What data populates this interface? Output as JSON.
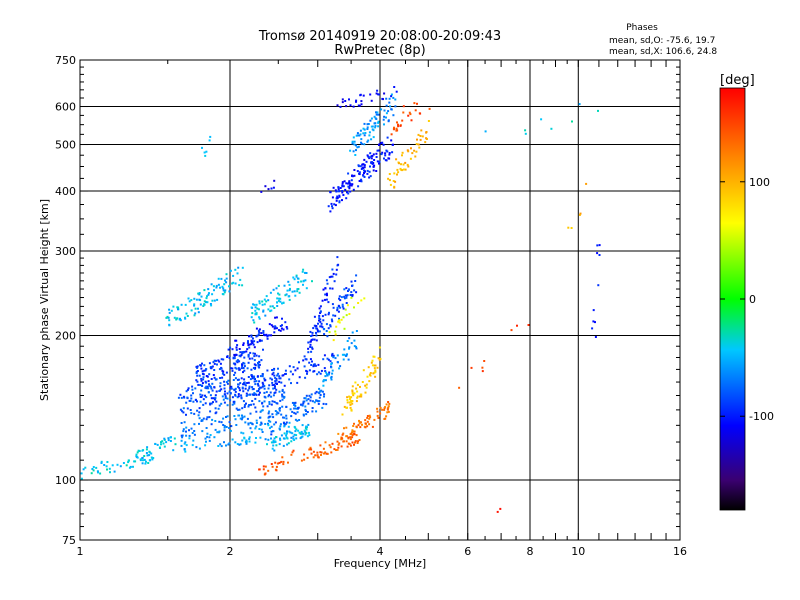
{
  "chart_data": {
    "type": "scatter",
    "title": "Tromsø 20140919 20:08:00-20:09:43",
    "subtitle": "RwPretec (8p)",
    "xlabel": "Frequency [MHz]",
    "ylabel": "Stationary phase Virtual Height [km]",
    "x_scale": "log",
    "y_scale": "log",
    "xlim": [
      1,
      16
    ],
    "ylim": [
      75,
      750
    ],
    "x_ticks": [
      1,
      2,
      4,
      6,
      8,
      10,
      16
    ],
    "x_tick_labels": [
      "1",
      "2",
      "4",
      "6",
      "8",
      "10",
      "16"
    ],
    "x_grid": [
      2,
      4,
      6,
      8,
      10
    ],
    "y_ticks": [
      75,
      100,
      200,
      300,
      400,
      500,
      600,
      750
    ],
    "y_tick_labels": [
      "75",
      "100",
      "200",
      "300",
      "400",
      "500",
      "600",
      "750"
    ],
    "y_grid": [
      100,
      200,
      300,
      400,
      500,
      600
    ],
    "grid": true,
    "legend": {
      "heading": "Phases",
      "line1": "mean, sd,O: -75.6, 19.7",
      "line2": "mean, sd,X: 106.6, 24.8",
      "placement": "top-right"
    },
    "colorbar": {
      "label": "[deg]",
      "range": [
        -180,
        180
      ],
      "tick_values": [
        100,
        0,
        -100
      ],
      "tick_labels": [
        "100",
        "0",
        "-100"
      ],
      "colormap": "rainbow",
      "placement": "right"
    },
    "traces": [
      {
        "name": "",
        "phase": -90,
        "count": 140,
        "x": [
          1.7,
          2.3
        ],
        "y": [
          165,
          180
        ],
        "spread": 0.05
      },
      {
        "name": "",
        "phase": -85,
        "count": 130,
        "x": [
          1.6,
          2.5
        ],
        "y": [
          150,
          162
        ],
        "spread": 0.04
      },
      {
        "name": "",
        "phase": -80,
        "count": 110,
        "x": [
          1.6,
          2.6
        ],
        "y": [
          140,
          150
        ],
        "spread": 0.04
      },
      {
        "name": "",
        "phase": -70,
        "count": 90,
        "x": [
          1.6,
          2.7
        ],
        "y": [
          128,
          138
        ],
        "spread": 0.04
      },
      {
        "name": "",
        "phase": -55,
        "count": 80,
        "x": [
          1.5,
          2.7
        ],
        "y": [
          118,
          127
        ],
        "spread": 0.04
      },
      {
        "name": "",
        "phase": -100,
        "count": 80,
        "x": [
          2.0,
          2.6
        ],
        "y": [
          185,
          215
        ],
        "spread": 0.04
      },
      {
        "name": "",
        "phase": -90,
        "count": 110,
        "x": [
          2.1,
          3.2
        ],
        "y": [
          155,
          175
        ],
        "spread": 0.05
      },
      {
        "name": "",
        "phase": -75,
        "count": 90,
        "x": [
          2.4,
          3.1
        ],
        "y": [
          130,
          150
        ],
        "spread": 0.05
      },
      {
        "name": "",
        "phase": -45,
        "count": 60,
        "x": [
          2.4,
          2.9
        ],
        "y": [
          118,
          128
        ],
        "spread": 0.03
      },
      {
        "name": "",
        "phase": -40,
        "count": 50,
        "x": [
          1.0,
          1.4
        ],
        "y": [
          103,
          112
        ],
        "spread": 0.03
      },
      {
        "name": "",
        "phase": -45,
        "count": 35,
        "x": [
          1.3,
          1.55
        ],
        "y": [
          112,
          122
        ],
        "spread": 0.03
      },
      {
        "name": "",
        "phase": -45,
        "count": 100,
        "x": [
          1.5,
          2.1
        ],
        "y": [
          215,
          265
        ],
        "spread": 0.05
      },
      {
        "name": "",
        "phase": -45,
        "count": 90,
        "x": [
          2.2,
          2.9
        ],
        "y": [
          220,
          265
        ],
        "spread": 0.05
      },
      {
        "name": "",
        "phase": -95,
        "count": 70,
        "x": [
          2.85,
          3.3
        ],
        "y": [
          180,
          290
        ],
        "spread": 0.04
      },
      {
        "name": "",
        "phase": -85,
        "count": 60,
        "x": [
          3.0,
          3.6
        ],
        "y": [
          200,
          260
        ],
        "spread": 0.05
      },
      {
        "name": "",
        "phase": -60,
        "count": 50,
        "x": [
          3.0,
          3.6
        ],
        "y": [
          150,
          200
        ],
        "spread": 0.05
      },
      {
        "name": "",
        "phase": 90,
        "count": 70,
        "x": [
          3.4,
          4.0
        ],
        "y": [
          140,
          180
        ],
        "spread": 0.05
      },
      {
        "name": "",
        "phase": 130,
        "count": 70,
        "x": [
          3.3,
          4.2
        ],
        "y": [
          122,
          140
        ],
        "spread": 0.04
      },
      {
        "name": "",
        "phase": 140,
        "count": 60,
        "x": [
          2.8,
          3.6
        ],
        "y": [
          112,
          122
        ],
        "spread": 0.03
      },
      {
        "name": "",
        "phase": 145,
        "count": 25,
        "x": [
          2.3,
          2.7
        ],
        "y": [
          104,
          112
        ],
        "spread": 0.03
      },
      {
        "name": "",
        "phase": 60,
        "count": 20,
        "x": [
          3.2,
          3.8
        ],
        "y": [
          200,
          260
        ],
        "spread": 0.05
      },
      {
        "name": "",
        "phase": -100,
        "count": 150,
        "x": [
          3.2,
          4.2
        ],
        "y": [
          380,
          500
        ],
        "spread": 0.05
      },
      {
        "name": "",
        "phase": -60,
        "count": 80,
        "x": [
          3.5,
          4.3
        ],
        "y": [
          480,
          620
        ],
        "spread": 0.05
      },
      {
        "name": "",
        "phase": -110,
        "count": 30,
        "x": [
          3.3,
          4.3
        ],
        "y": [
          600,
          650
        ],
        "spread": 0.03
      },
      {
        "name": "",
        "phase": 100,
        "count": 50,
        "x": [
          4.2,
          5.0
        ],
        "y": [
          420,
          540
        ],
        "spread": 0.05
      },
      {
        "name": "",
        "phase": 150,
        "count": 25,
        "x": [
          4.2,
          5.0
        ],
        "y": [
          540,
          620
        ],
        "spread": 0.05
      },
      {
        "name": "",
        "phase": -40,
        "count": 6,
        "x": [
          1.75,
          1.85
        ],
        "y": [
          480,
          510
        ],
        "spread": 0.03
      },
      {
        "name": "",
        "phase": -110,
        "count": 6,
        "x": [
          2.3,
          2.5
        ],
        "y": [
          390,
          420
        ],
        "spread": 0.03
      },
      {
        "name": "",
        "phase": -100,
        "count": 10,
        "x": [
          10.7,
          11.0
        ],
        "y": [
          170,
          330
        ],
        "spread": 0.05
      },
      {
        "name": "",
        "phase": -40,
        "count": 8,
        "x": [
          6.0,
          11.0
        ],
        "y": [
          500,
          610
        ],
        "spread": 0.05
      },
      {
        "name": "",
        "phase": 150,
        "count": 8,
        "x": [
          5.5,
          8.0
        ],
        "y": [
          150,
          220
        ],
        "spread": 0.05
      },
      {
        "name": "",
        "phase": 100,
        "count": 5,
        "x": [
          9.5,
          11.0
        ],
        "y": [
          320,
          480
        ],
        "spread": 0.05
      },
      {
        "name": "",
        "phase": 170,
        "count": 2,
        "x": [
          6.8,
          7.0
        ],
        "y": [
          85,
          90
        ],
        "spread": 0.02
      }
    ]
  }
}
